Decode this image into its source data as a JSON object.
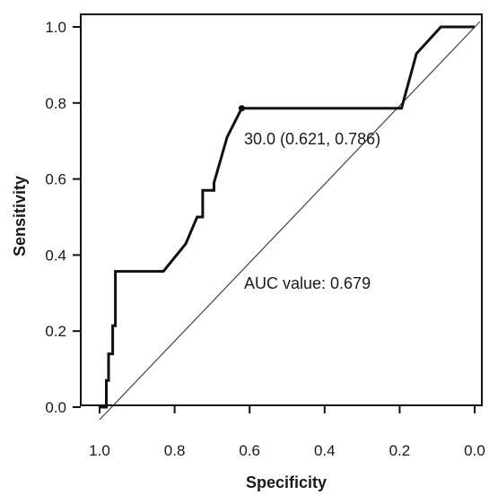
{
  "chart_data": {
    "type": "line",
    "title": "",
    "xlabel": "Specificity",
    "ylabel": "Sensitivity",
    "xlim": [
      1.0,
      0.0
    ],
    "ylim": [
      0.0,
      1.0
    ],
    "x_reversed": true,
    "grid": false,
    "legend": "none",
    "xticks": [
      "1.0",
      "0.8",
      "0.6",
      "0.4",
      "0.2",
      "0.0"
    ],
    "xtick_values": [
      1.0,
      0.8,
      0.6,
      0.4,
      0.2,
      0.0
    ],
    "yticks": [
      "0.0",
      "0.2",
      "0.4",
      "0.6",
      "0.8",
      "1.0"
    ],
    "ytick_values": [
      0.0,
      0.2,
      0.4,
      0.6,
      0.8,
      1.0
    ],
    "series": [
      {
        "kind": "roc",
        "specificity": [
          1.0,
          0.982,
          0.982,
          0.976,
          0.976,
          0.965,
          0.965,
          0.958,
          0.958,
          0.83,
          0.77,
          0.74,
          0.725,
          0.725,
          0.695,
          0.695,
          0.66,
          0.621,
          0.621,
          0.195,
          0.155,
          0.09,
          0.0
        ],
        "sensitivity": [
          0.0,
          0.0,
          0.07,
          0.07,
          0.14,
          0.14,
          0.214,
          0.214,
          0.357,
          0.357,
          0.43,
          0.5,
          0.5,
          0.57,
          0.57,
          0.59,
          0.71,
          0.786,
          0.786,
          0.786,
          0.93,
          1.0,
          1.0
        ]
      },
      {
        "kind": "reference",
        "specificity": [
          1.0,
          0.0
        ],
        "sensitivity": [
          0.0,
          1.0
        ]
      }
    ],
    "marked_point": {
      "specificity": 0.621,
      "sensitivity": 0.786
    },
    "annotations": [
      {
        "text": "30.0 (0.621, 0.786)"
      },
      {
        "text": "AUC value: 0.679"
      }
    ]
  }
}
